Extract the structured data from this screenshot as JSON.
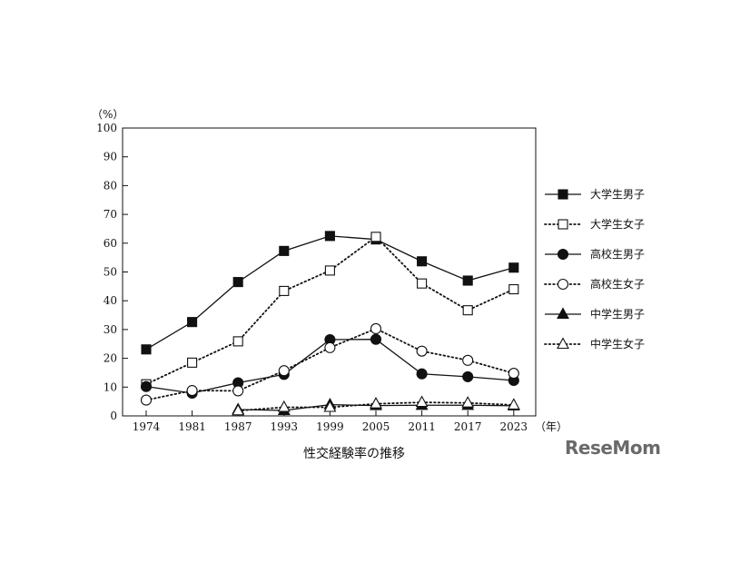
{
  "chart_data": {
    "type": "line",
    "title": "性交経験率の推移",
    "y_unit": "（%）",
    "x_unit": "（年）",
    "ylim": [
      0,
      100
    ],
    "yticks": [
      0,
      10,
      20,
      30,
      40,
      50,
      60,
      70,
      80,
      90,
      100
    ],
    "categories": [
      "1974",
      "1981",
      "1987",
      "1993",
      "1999",
      "2005",
      "2011",
      "2017",
      "2023"
    ],
    "grid": false,
    "legend_position": "right",
    "series": [
      {
        "name": "大学生男子",
        "marker": "square",
        "fill": "filled",
        "line": "solid",
        "values": [
          23.1,
          32.6,
          46.5,
          57.3,
          62.5,
          61.3,
          53.7,
          47.0,
          51.5
        ]
      },
      {
        "name": "大学生女子",
        "marker": "square",
        "fill": "open",
        "line": "dotted",
        "values": [
          11.0,
          18.5,
          25.9,
          43.4,
          50.5,
          62.2,
          46.0,
          36.7,
          44.0
        ]
      },
      {
        "name": "高校生男子",
        "marker": "circle",
        "fill": "filled",
        "line": "solid",
        "values": [
          10.2,
          7.9,
          11.5,
          14.4,
          26.5,
          26.6,
          14.6,
          13.6,
          12.3
        ]
      },
      {
        "name": "高校生女子",
        "marker": "circle",
        "fill": "open",
        "line": "dotted",
        "values": [
          5.5,
          8.8,
          8.7,
          15.7,
          23.7,
          30.3,
          22.5,
          19.3,
          14.8
        ]
      },
      {
        "name": "中学生男子",
        "marker": "triangle",
        "fill": "filled",
        "line": "solid",
        "values": [
          null,
          null,
          2.2,
          1.9,
          3.9,
          3.6,
          3.7,
          3.7,
          3.5
        ]
      },
      {
        "name": "中学生女子",
        "marker": "triangle",
        "fill": "open",
        "line": "dotted",
        "values": [
          null,
          null,
          1.8,
          3.0,
          3.0,
          4.2,
          4.7,
          4.5,
          3.8
        ]
      }
    ]
  },
  "watermark": "ReseMom"
}
